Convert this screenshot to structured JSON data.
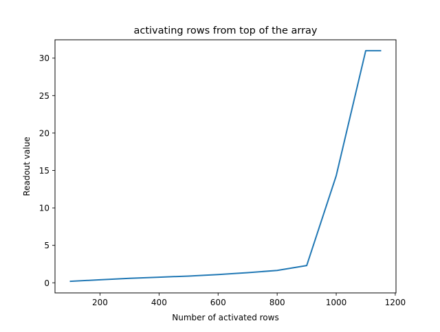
{
  "chart_data": {
    "type": "line",
    "title": "activating rows from top of the array",
    "xlabel": "Number of activated rows",
    "ylabel": "Readout value",
    "xlim": [
      47.5,
      1202.5
    ],
    "ylim": [
      -1.35,
      32.45
    ],
    "xticks": [
      200,
      400,
      600,
      800,
      1000,
      1200
    ],
    "xtick_labels": [
      "200",
      "400",
      "600",
      "800",
      "1000",
      "1200"
    ],
    "yticks": [
      0,
      5,
      10,
      15,
      20,
      25,
      30
    ],
    "ytick_labels": [
      "0",
      "5",
      "10",
      "15",
      "20",
      "25",
      "30"
    ],
    "grid": false,
    "series": [
      {
        "color": "#1f77b4",
        "x": [
          100,
          200,
          300,
          400,
          500,
          600,
          700,
          800,
          900,
          1000,
          1100,
          1150
        ],
        "y": [
          0.2,
          0.4,
          0.6,
          0.75,
          0.9,
          1.1,
          1.35,
          1.65,
          2.3,
          14.3,
          31.0,
          31.0
        ]
      }
    ]
  }
}
